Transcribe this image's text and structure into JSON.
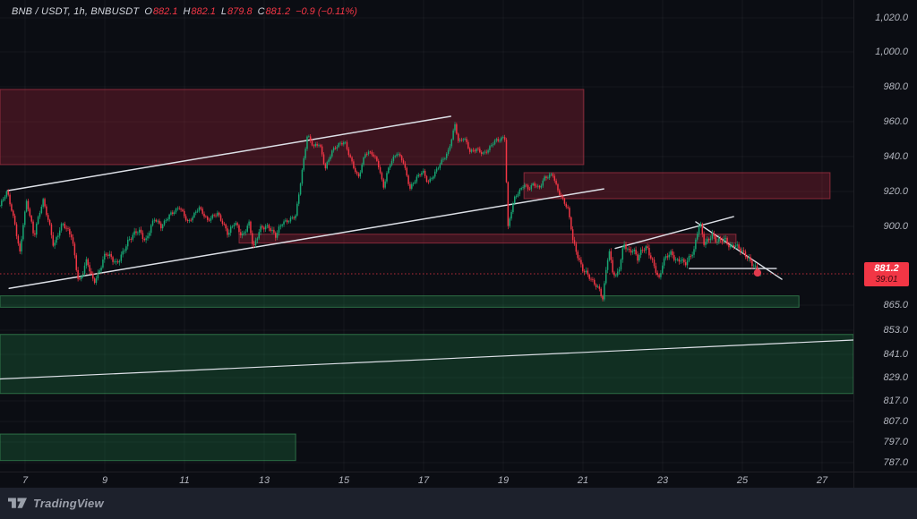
{
  "legend": {
    "title": "BNB / USDT, 1h, BNBUSDT",
    "o_label": "O",
    "o_value": "882.1",
    "h_label": "H",
    "h_value": "882.1",
    "l_label": "L",
    "l_value": "879.8",
    "c_label": "C",
    "c_value": "881.2",
    "change": "−0.9 (−0.11%)"
  },
  "price_label": {
    "price": "881.2",
    "countdown": "39:01"
  },
  "watermark": {
    "brand": "TradingView"
  },
  "colors": {
    "up": "#17a673",
    "down": "#f23645",
    "supply_fill": "rgba(201,42,66,0.26)",
    "supply_border": "rgba(214,62,84,0.55)",
    "demand_fill": "rgba(36,160,82,0.24)",
    "demand_border": "rgba(76,190,112,0.5)",
    "trendline": "#dde0e7",
    "grid": "rgba(255,255,255,0.045)",
    "last_price_line": "#f23645",
    "marker": "#e13a4d"
  },
  "chart_data": {
    "type": "candlestick",
    "symbol": "BNB / USDT",
    "interval": "1h",
    "ticker": "BNBUSDT",
    "ohlc": {
      "open": 882.1,
      "high": 882.1,
      "low": 879.8,
      "close": 881.2,
      "change": -0.9,
      "change_pct": -0.11
    },
    "last_price": 881.2,
    "y_axis_ticks": [
      {
        "label": "1,020.0",
        "value": 1020
      },
      {
        "label": "1,000.0",
        "value": 1000
      },
      {
        "label": "980.0",
        "value": 980
      },
      {
        "label": "960.0",
        "value": 960
      },
      {
        "label": "940.0",
        "value": 940
      },
      {
        "label": "920.0",
        "value": 920
      },
      {
        "label": "900.0",
        "value": 900
      },
      {
        "label": "865.0",
        "value": 865
      },
      {
        "label": "853.0",
        "value": 853
      },
      {
        "label": "841.0",
        "value": 841
      },
      {
        "label": "829.0",
        "value": 829
      },
      {
        "label": "817.0",
        "value": 817
      },
      {
        "label": "807.0",
        "value": 807
      },
      {
        "label": "797.0",
        "value": 797
      },
      {
        "label": "787.0",
        "value": 787
      }
    ],
    "x_axis_ticks": [
      {
        "label": "7",
        "day": 7
      },
      {
        "label": "9",
        "day": 9
      },
      {
        "label": "11",
        "day": 11
      },
      {
        "label": "13",
        "day": 13
      },
      {
        "label": "15",
        "day": 15
      },
      {
        "label": "17",
        "day": 17
      },
      {
        "label": "19",
        "day": 19
      },
      {
        "label": "21",
        "day": 21
      },
      {
        "label": "23",
        "day": 23
      },
      {
        "label": "25",
        "day": 25
      },
      {
        "label": "27",
        "day": 27
      }
    ],
    "zones": [
      {
        "name": "supply-zone-upper",
        "type": "supply",
        "day_start": 6.37,
        "day_end": 21.02,
        "price_top": 978.5,
        "price_bottom": 935.4
      },
      {
        "name": "supply-zone-right",
        "type": "supply",
        "day_start": 19.52,
        "day_end": 27.2,
        "price_top": 930.8,
        "price_bottom": 915.9
      },
      {
        "name": "supply-zone-thin",
        "type": "supply",
        "day_start": 12.37,
        "day_end": 24.84,
        "price_top": 896.9,
        "price_bottom": 893.4
      },
      {
        "name": "demand-zone-thin",
        "type": "demand",
        "day_start": 6.37,
        "day_end": 26.42,
        "price_top": 869.8,
        "price_bottom": 864.0
      },
      {
        "name": "demand-zone-major",
        "type": "demand",
        "day_start": 6.37,
        "day_end": 27.79,
        "price_top": 850.9,
        "price_bottom": 820.8
      },
      {
        "name": "demand-zone-lower",
        "type": "demand",
        "day_start": 6.37,
        "day_end": 13.79,
        "price_top": 800.9,
        "price_bottom": 788.0
      }
    ],
    "trendlines": [
      {
        "name": "channel-upper",
        "days": [
          6.57,
          17.68
        ],
        "prices": [
          920.5,
          963.1
        ],
        "width": 1.5
      },
      {
        "name": "channel-lower",
        "days": [
          6.6,
          21.52
        ],
        "prices": [
          873.7,
          921.5
        ],
        "width": 1.5
      },
      {
        "name": "wedge-support",
        "days": [
          21.81,
          24.78
        ],
        "prices": [
          891.3,
          905.6
        ],
        "width": 1.4
      },
      {
        "name": "wedge-resistance",
        "days": [
          23.83,
          25.99
        ],
        "prices": [
          902.6,
          878.4
        ],
        "width": 1.4
      },
      {
        "name": "local-support-horizontal",
        "days": [
          23.67,
          25.85
        ],
        "prices": [
          883.3,
          883.3
        ],
        "width": 1.4
      },
      {
        "name": "demand-trendline",
        "days": [
          6.37,
          27.79
        ],
        "prices": [
          828.3,
          848.1
        ],
        "width": 1.2
      }
    ],
    "last_price_marker": {
      "day": 25.38,
      "price": 881.6
    },
    "price_path": [
      [
        6.37,
        911.8
      ],
      [
        6.55,
        919.5
      ],
      [
        6.87,
        889.9
      ],
      [
        7.04,
        914.4
      ],
      [
        7.22,
        894.8
      ],
      [
        7.45,
        915.9
      ],
      [
        7.72,
        891.3
      ],
      [
        7.94,
        901.5
      ],
      [
        8.17,
        896.9
      ],
      [
        8.35,
        876.1
      ],
      [
        8.55,
        886.4
      ],
      [
        8.73,
        877.5
      ],
      [
        9.02,
        888.9
      ],
      [
        9.29,
        885.4
      ],
      [
        9.56,
        893.4
      ],
      [
        9.85,
        898.3
      ],
      [
        10.03,
        894.8
      ],
      [
        10.24,
        904.1
      ],
      [
        10.42,
        899.3
      ],
      [
        10.64,
        907.7
      ],
      [
        10.87,
        910.8
      ],
      [
        11.09,
        901.5
      ],
      [
        11.36,
        911.8
      ],
      [
        11.58,
        902.6
      ],
      [
        11.83,
        907.7
      ],
      [
        12.1,
        896.9
      ],
      [
        12.26,
        901.5
      ],
      [
        12.44,
        895.8
      ],
      [
        12.62,
        902.6
      ],
      [
        12.73,
        891.3
      ],
      [
        12.89,
        898.3
      ],
      [
        13.11,
        900.3
      ],
      [
        13.29,
        896.9
      ],
      [
        13.45,
        901.5
      ],
      [
        13.61,
        902.6
      ],
      [
        13.79,
        906.7
      ],
      [
        13.92,
        927.2
      ],
      [
        14.08,
        951.8
      ],
      [
        14.24,
        945.1
      ],
      [
        14.39,
        947.7
      ],
      [
        14.53,
        933.8
      ],
      [
        14.69,
        942.6
      ],
      [
        14.87,
        946.2
      ],
      [
        15.02,
        948.7
      ],
      [
        15.2,
        937.4
      ],
      [
        15.36,
        927.2
      ],
      [
        15.54,
        941.5
      ],
      [
        15.7,
        942.6
      ],
      [
        15.85,
        937.4
      ],
      [
        15.99,
        922.1
      ],
      [
        16.15,
        934.9
      ],
      [
        16.33,
        942.6
      ],
      [
        16.48,
        938.5
      ],
      [
        16.66,
        921.0
      ],
      [
        16.82,
        927.2
      ],
      [
        16.98,
        932.3
      ],
      [
        17.11,
        925.6
      ],
      [
        17.27,
        929.7
      ],
      [
        17.43,
        935.9
      ],
      [
        17.61,
        942.6
      ],
      [
        17.79,
        959.0
      ],
      [
        17.88,
        947.7
      ],
      [
        18.01,
        950.3
      ],
      [
        18.17,
        942.6
      ],
      [
        18.33,
        945.1
      ],
      [
        18.51,
        941.5
      ],
      [
        18.64,
        943.6
      ],
      [
        18.78,
        948.7
      ],
      [
        18.91,
        950.3
      ],
      [
        19.02,
        951.8
      ],
      [
        19.06,
        950.3
      ],
      [
        19.1,
        897.0
      ],
      [
        19.18,
        906.7
      ],
      [
        19.29,
        915.9
      ],
      [
        19.4,
        919.5
      ],
      [
        19.52,
        924.6
      ],
      [
        19.63,
        922.1
      ],
      [
        19.76,
        924.6
      ],
      [
        19.9,
        921.0
      ],
      [
        20.03,
        927.2
      ],
      [
        20.15,
        929.2
      ],
      [
        20.24,
        930.8
      ],
      [
        20.35,
        922.1
      ],
      [
        20.48,
        915.4
      ],
      [
        20.62,
        909.2
      ],
      [
        20.75,
        894.1
      ],
      [
        20.87,
        888.9
      ],
      [
        20.98,
        883.6
      ],
      [
        21.09,
        881.2
      ],
      [
        21.2,
        877.5
      ],
      [
        21.31,
        875.1
      ],
      [
        21.43,
        872.8
      ],
      [
        21.49,
        868.1
      ],
      [
        21.58,
        883.6
      ],
      [
        21.65,
        891.3
      ],
      [
        21.74,
        882.1
      ],
      [
        21.83,
        878.9
      ],
      [
        21.92,
        883.6
      ],
      [
        22.03,
        893.4
      ],
      [
        22.15,
        890.6
      ],
      [
        22.26,
        891.3
      ],
      [
        22.37,
        887.1
      ],
      [
        22.48,
        889.9
      ],
      [
        22.6,
        891.3
      ],
      [
        22.71,
        887.8
      ],
      [
        22.82,
        883.6
      ],
      [
        22.91,
        878.9
      ],
      [
        23.0,
        885.4
      ],
      [
        23.11,
        887.8
      ],
      [
        23.22,
        888.9
      ],
      [
        23.34,
        886.4
      ],
      [
        23.45,
        887.8
      ],
      [
        23.56,
        885.4
      ],
      [
        23.67,
        887.1
      ],
      [
        23.79,
        889.9
      ],
      [
        23.88,
        898.3
      ],
      [
        23.94,
        902.1
      ],
      [
        24.03,
        894.1
      ],
      [
        24.12,
        894.8
      ],
      [
        24.24,
        896.9
      ],
      [
        24.35,
        893.4
      ],
      [
        24.46,
        894.1
      ],
      [
        24.57,
        894.8
      ],
      [
        24.69,
        892.4
      ],
      [
        24.8,
        893.4
      ],
      [
        24.91,
        891.3
      ],
      [
        25.02,
        888.9
      ],
      [
        25.13,
        887.1
      ],
      [
        25.25,
        885.4
      ],
      [
        25.36,
        883.6
      ],
      [
        25.47,
        881.2
      ]
    ]
  }
}
